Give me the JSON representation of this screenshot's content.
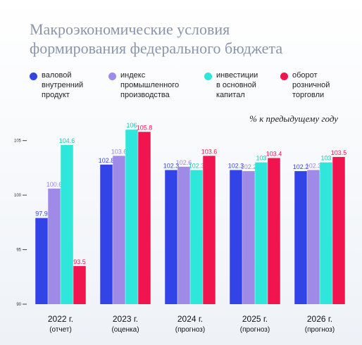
{
  "title_line1": "Макроэкономические условия",
  "title_line2": "формирования федерального бюджета",
  "legend": [
    {
      "line1": "валовой",
      "line2": "внутренний",
      "line3": "продукт",
      "color": "#3344e6"
    },
    {
      "line1": "индекс",
      "line2": "промышленного",
      "line3": "производства",
      "color": "#a08ae8"
    },
    {
      "line1": "инвестиции",
      "line2": "в основной",
      "line3": "капитал",
      "color": "#2ee6d9"
    },
    {
      "line1": "оборот",
      "line2": "розничной",
      "line3": "торговли",
      "color": "#f0144f"
    }
  ],
  "unit_note": "% к предыдущему году",
  "chart_data": {
    "type": "bar",
    "categories": [
      "2022 г.",
      "2023 г.",
      "2024 г.",
      "2025 г.",
      "2026 г."
    ],
    "category_notes": [
      "(отчет)",
      "(оценка)",
      "(прогноз)",
      "(прогноз)",
      "(прогноз)"
    ],
    "series": [
      {
        "name": "валовой внутренний продукт",
        "values": [
          97.9,
          102.8,
          102.3,
          102.3,
          102.2
        ],
        "color": "#3344e6",
        "label_color": "#3344e6"
      },
      {
        "name": "индекс промышленного производства",
        "values": [
          100.6,
          103.6,
          102.6,
          102.2,
          102.3
        ],
        "color": "#a08ae8",
        "label_color": "#9a86e0"
      },
      {
        "name": "инвестиции в основной капитал",
        "values": [
          104.6,
          106,
          102.3,
          103,
          103
        ],
        "color": "#2ee6d9",
        "label_color": "#19c9bd"
      },
      {
        "name": "оборот розничной торговли",
        "values": [
          93.5,
          105.8,
          103.6,
          103.4,
          103.5
        ],
        "color": "#f0144f",
        "label_color": "#f0144f"
      }
    ],
    "yticks": [
      90,
      95,
      100,
      105
    ],
    "ylim": [
      90,
      106.4
    ],
    "grid": false,
    "legend_position": "top"
  }
}
